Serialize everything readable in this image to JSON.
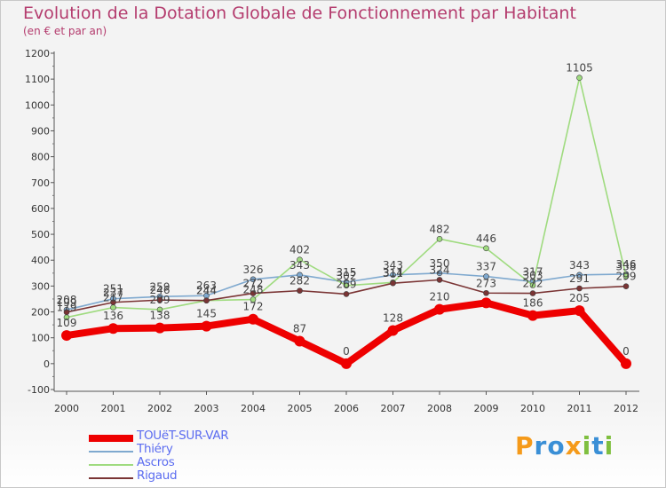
{
  "title": "Evolution de la Dotation Globale de Fonctionnement par Habitant",
  "subtitle": "(en € et par an)",
  "brand": {
    "letters": [
      "P",
      "r",
      "o",
      "x",
      "i",
      "t",
      "i"
    ],
    "colors": [
      "#f59a1a",
      "#3a8fd6",
      "#3a8fd6",
      "#f59a1a",
      "#7fbf3f",
      "#3a8fd6",
      "#7fbf3f"
    ]
  },
  "chart_data": {
    "type": "line",
    "title": "Evolution de la Dotation Globale de Fonctionnement par Habitant",
    "subtitle": "(en € et par an)",
    "x": [
      "2000",
      "2001",
      "2002",
      "2003",
      "2004",
      "2005",
      "2006",
      "2007",
      "2008",
      "2009",
      "2010",
      "2011",
      "2012"
    ],
    "ylim": [
      -100,
      1200
    ],
    "yticks": [
      -100,
      0,
      100,
      200,
      300,
      400,
      500,
      600,
      700,
      800,
      900,
      1000,
      1100,
      1200
    ],
    "ytick_labels": [
      "-100",
      "0",
      "100",
      "200",
      "300",
      "400",
      "500",
      "600",
      "700",
      "800",
      "900",
      "1000",
      "1100",
      "1200"
    ],
    "grid": false,
    "legend_position": "bottom-left",
    "series": [
      {
        "name": "TOUëT-SUR-VAR",
        "color": "#ee0000",
        "values": [
          109,
          136,
          138,
          145,
          172,
          87,
          0,
          128,
          210,
          235,
          186,
          205,
          0
        ],
        "labels": [
          "109",
          "136",
          "138",
          "145",
          "172",
          "87",
          "0",
          "128",
          "210",
          "",
          "186",
          "205",
          "0"
        ]
      },
      {
        "name": "Thiéry",
        "color": "#7fa9cf",
        "values": [
          208,
          251,
          259,
          263,
          326,
          343,
          315,
          343,
          350,
          337,
          317,
          343,
          346
        ],
        "labels": [
          "208",
          "251",
          "259",
          "263",
          "326",
          "343",
          "315",
          "343",
          "350",
          "337",
          "317",
          "343",
          "346"
        ]
      },
      {
        "name": "Ascros",
        "color": "#9fdb7f",
        "values": [
          179,
          217,
          209,
          244,
          248,
          402,
          302,
          314,
          482,
          446,
          303,
          1105,
          338
        ],
        "labels": [
          "179",
          "217",
          "209",
          "244",
          "248",
          "402",
          "302",
          "314",
          "482",
          "446",
          "303",
          "1105",
          "338"
        ]
      },
      {
        "name": "Rigaud",
        "color": "#7a3434",
        "values": [
          199,
          237,
          246,
          244,
          272,
          282,
          269,
          311,
          324,
          273,
          272,
          291,
          299
        ],
        "labels": [
          "199",
          "237",
          "246",
          "244",
          "272",
          "282",
          "269",
          "311",
          "324",
          "273",
          "272",
          "291",
          "299"
        ]
      }
    ]
  }
}
